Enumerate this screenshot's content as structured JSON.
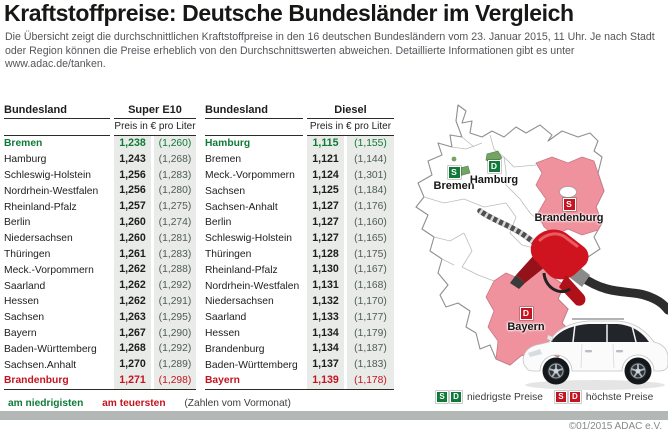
{
  "header": {
    "title": "Kraftstoffpreise: Deutsche Bundesländer im Vergleich",
    "subtitle": "Die Übersicht zeigt die durchschnittlichen Kraftstoffpreise in den 16 deutschen Bundesländern vom 23. Januar 2015, 11 Uhr. Je nach Stadt oder Region können die Preise erheblich von den Durchschnittswerten abweichen. Detaillierte Informationen gibt es unter www.adac.de/tanken."
  },
  "tables": [
    {
      "fuel": "Super E10",
      "col_state": "Bundesland",
      "col_price": "Preis in € pro Liter",
      "rows": [
        {
          "state": "Bremen",
          "price": "1,238",
          "prev": "(1,260)",
          "highlight": "low"
        },
        {
          "state": "Hamburg",
          "price": "1,243",
          "prev": "(1,268)",
          "highlight": ""
        },
        {
          "state": "Schleswig-Holstein",
          "price": "1,256",
          "prev": "(1,283)",
          "highlight": ""
        },
        {
          "state": "Nordrhein-Westfalen",
          "price": "1,256",
          "prev": "(1,280)",
          "highlight": ""
        },
        {
          "state": "Rheinland-Pfalz",
          "price": "1,257",
          "prev": "(1,275)",
          "highlight": ""
        },
        {
          "state": "Berlin",
          "price": "1,260",
          "prev": "(1,274)",
          "highlight": ""
        },
        {
          "state": "Niedersachsen",
          "price": "1,260",
          "prev": "(1,281)",
          "highlight": ""
        },
        {
          "state": "Thüringen",
          "price": "1,261",
          "prev": "(1,283)",
          "highlight": ""
        },
        {
          "state": "Meck.-Vorpommern",
          "price": "1,262",
          "prev": "(1,288)",
          "highlight": ""
        },
        {
          "state": "Saarland",
          "price": "1,262",
          "prev": "(1,292)",
          "highlight": ""
        },
        {
          "state": "Hessen",
          "price": "1,262",
          "prev": "(1,291)",
          "highlight": ""
        },
        {
          "state": "Sachsen",
          "price": "1,263",
          "prev": "(1,295)",
          "highlight": ""
        },
        {
          "state": "Bayern",
          "price": "1,267",
          "prev": "(1,290)",
          "highlight": ""
        },
        {
          "state": "Baden-Württemberg",
          "price": "1,268",
          "prev": "(1,292)",
          "highlight": ""
        },
        {
          "state": "Sachsen.Anhalt",
          "price": "1,270",
          "prev": "(1,289)",
          "highlight": ""
        },
        {
          "state": "Brandenburg",
          "price": "1,271",
          "prev": "(1,298)",
          "highlight": "high"
        }
      ]
    },
    {
      "fuel": "Diesel",
      "col_state": "Bundesland",
      "col_price": "Preis in € pro Liter",
      "rows": [
        {
          "state": "Hamburg",
          "price": "1,115",
          "prev": "(1,155)",
          "highlight": "low"
        },
        {
          "state": "Bremen",
          "price": "1,121",
          "prev": "(1,144)",
          "highlight": ""
        },
        {
          "state": "Meck.-Vorpommern",
          "price": "1,124",
          "prev": "(1,301)",
          "highlight": ""
        },
        {
          "state": "Sachsen",
          "price": "1,125",
          "prev": "(1,184)",
          "highlight": ""
        },
        {
          "state": "Sachsen-Anhalt",
          "price": "1,127",
          "prev": "(1,176)",
          "highlight": ""
        },
        {
          "state": "Berlin",
          "price": "1,127",
          "prev": "(1,160)",
          "highlight": ""
        },
        {
          "state": "Schleswig-Holstein",
          "price": "1,127",
          "prev": "(1,165)",
          "highlight": ""
        },
        {
          "state": "Thüringen",
          "price": "1,128",
          "prev": "(1,175)",
          "highlight": ""
        },
        {
          "state": "Rheinland-Pfalz",
          "price": "1,130",
          "prev": "(1,167)",
          "highlight": ""
        },
        {
          "state": "Nordrhein-Westfalen",
          "price": "1,131",
          "prev": "(1,168)",
          "highlight": ""
        },
        {
          "state": "Niedersachsen",
          "price": "1,132",
          "prev": "(1,170)",
          "highlight": ""
        },
        {
          "state": "Saarland",
          "price": "1,133",
          "prev": "(1,177)",
          "highlight": ""
        },
        {
          "state": "Hessen",
          "price": "1,134",
          "prev": "(1,179)",
          "highlight": ""
        },
        {
          "state": "Brandenburg",
          "price": "1,134",
          "prev": "(1,187)",
          "highlight": ""
        },
        {
          "state": "Baden-Württemberg",
          "price": "1,137",
          "prev": "(1,183)",
          "highlight": ""
        },
        {
          "state": "Bayern",
          "price": "1,139",
          "prev": "(1,178)",
          "highlight": "high"
        }
      ]
    }
  ],
  "footer": {
    "lowest_label": "am niedrigisten",
    "highest_label": "am teuersten",
    "note": "(Zahlen vom Vormonat)"
  },
  "map_legend": {
    "badge_s": "S",
    "badge_d": "D",
    "low_label": "niedrigste Preise",
    "high_label": "höchste Preise"
  },
  "map": {
    "annotations": [
      {
        "name": "Bremen",
        "badge": "S",
        "type": "low"
      },
      {
        "name": "Hamburg",
        "badge": "D",
        "type": "low"
      },
      {
        "name": "Brandenburg",
        "badge": "S",
        "type": "high"
      },
      {
        "name": "Bayern",
        "badge": "D",
        "type": "high"
      }
    ]
  },
  "copyright": "©01/2015 ADAC e.V.",
  "colors": {
    "green": "#0f7a38",
    "red": "#c4141f",
    "pink": "#f0919e",
    "state_green": "#74a463",
    "bar": "#b3b8b6"
  },
  "chart_data": [
    {
      "type": "table",
      "title": "Super E10 – Preis in € pro Liter (23. Januar 2015, 11 Uhr)",
      "categories": [
        "Bremen",
        "Hamburg",
        "Schleswig-Holstein",
        "Nordrhein-Westfalen",
        "Rheinland-Pfalz",
        "Berlin",
        "Niedersachsen",
        "Thüringen",
        "Meck.-Vorpommern",
        "Saarland",
        "Hessen",
        "Sachsen",
        "Bayern",
        "Baden-Württemberg",
        "Sachsen.Anhalt",
        "Brandenburg"
      ],
      "series": [
        {
          "name": "aktuell",
          "values": [
            1.238,
            1.243,
            1.256,
            1.256,
            1.257,
            1.26,
            1.26,
            1.261,
            1.262,
            1.262,
            1.262,
            1.263,
            1.267,
            1.268,
            1.27,
            1.271
          ]
        },
        {
          "name": "Vormonat",
          "values": [
            1.26,
            1.268,
            1.283,
            1.28,
            1.275,
            1.274,
            1.281,
            1.283,
            1.288,
            1.292,
            1.291,
            1.295,
            1.29,
            1.292,
            1.289,
            1.298
          ]
        }
      ],
      "notes": "niedrigster Wert: Bremen (grün), höchster Wert: Brandenburg (rot)"
    },
    {
      "type": "table",
      "title": "Diesel – Preis in € pro Liter (23. Januar 2015, 11 Uhr)",
      "categories": [
        "Hamburg",
        "Bremen",
        "Meck.-Vorpommern",
        "Sachsen",
        "Sachsen-Anhalt",
        "Berlin",
        "Schleswig-Holstein",
        "Thüringen",
        "Rheinland-Pfalz",
        "Nordrhein-Westfalen",
        "Niedersachsen",
        "Saarland",
        "Hessen",
        "Brandenburg",
        "Baden-Württemberg",
        "Bayern"
      ],
      "series": [
        {
          "name": "aktuell",
          "values": [
            1.115,
            1.121,
            1.124,
            1.125,
            1.127,
            1.127,
            1.127,
            1.128,
            1.13,
            1.131,
            1.132,
            1.133,
            1.134,
            1.134,
            1.137,
            1.139
          ]
        },
        {
          "name": "Vormonat",
          "values": [
            1.155,
            1.144,
            1.301,
            1.184,
            1.176,
            1.16,
            1.165,
            1.175,
            1.167,
            1.168,
            1.17,
            1.177,
            1.179,
            1.187,
            1.183,
            1.178
          ]
        }
      ],
      "notes": "niedrigster Wert: Hamburg (grün), höchster Wert: Bayern (rot)"
    }
  ]
}
